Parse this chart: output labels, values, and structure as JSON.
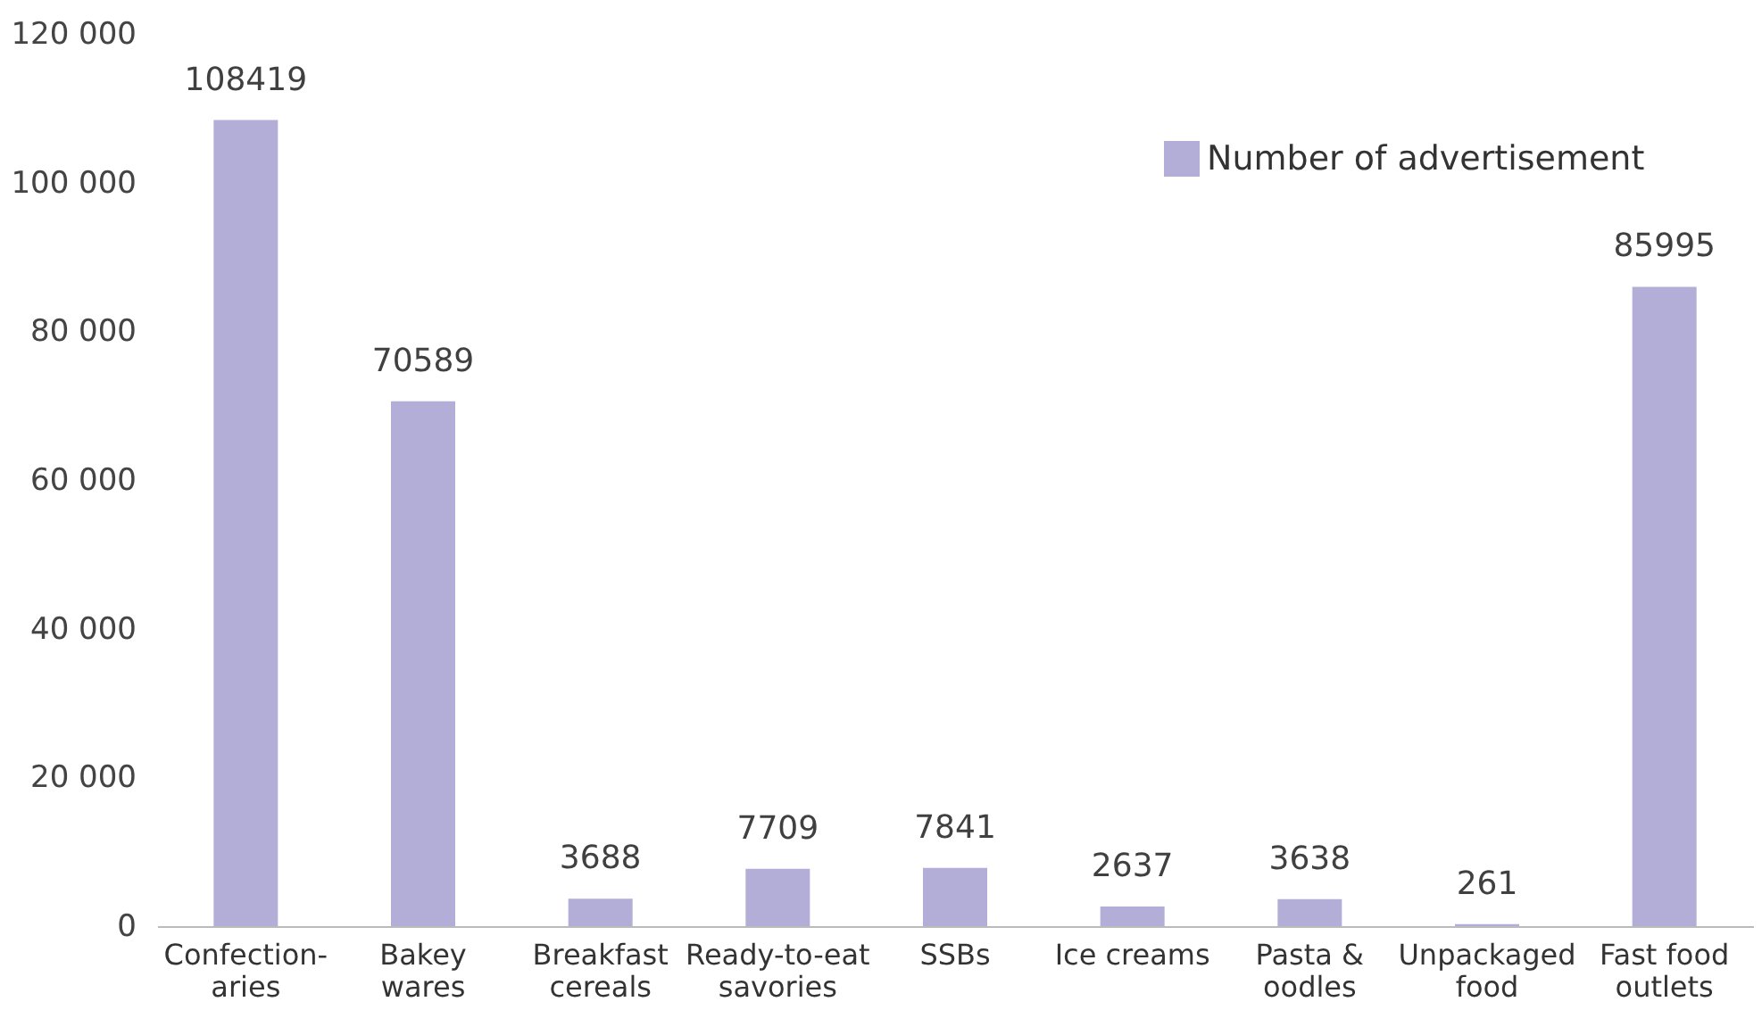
{
  "chart_data": {
    "type": "bar",
    "categories": [
      "Confection-\naries",
      "Bakey\nwares",
      "Breakfast\ncereals",
      "Ready-to-eat\nsavories",
      "SSBs",
      "Ice creams",
      "Pasta &\noodles",
      "Unpackaged\nfood",
      "Fast food\noutlets"
    ],
    "series": [
      {
        "name": "Number of advertisement",
        "color": "#b3aed8",
        "values": [
          108419,
          70589,
          3688,
          7709,
          7841,
          2637,
          3638,
          261,
          85995
        ]
      }
    ],
    "ylim": [
      0,
      120000
    ],
    "yticks": [
      0,
      {
        "value": 20000,
        "label": "20 000"
      },
      {
        "value": 40000,
        "label": "40 000"
      },
      {
        "value": 60000,
        "label": "60 000"
      },
      {
        "value": 80000,
        "label": "80 000"
      },
      {
        "value": 100000,
        "label": "100 000"
      },
      {
        "value": 120000,
        "label": "120 000"
      }
    ],
    "data_labels": true,
    "grid": false,
    "legend": "top right"
  }
}
